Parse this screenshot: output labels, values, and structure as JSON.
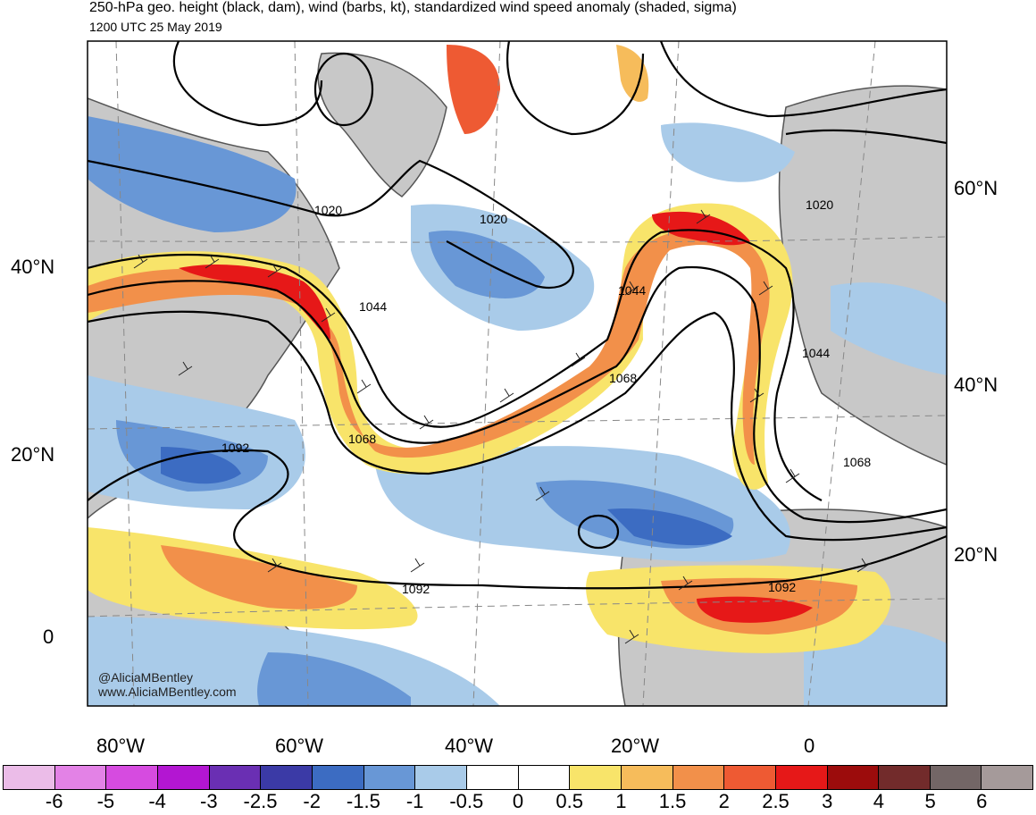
{
  "header": {
    "title": "250-hPa geo. height (black, dam), wind (barbs, kt), standardized wind speed anomaly (shaded, sigma)",
    "valid_time": "1200 UTC 25 May 2019"
  },
  "axes": {
    "left_lat_labels": [
      "40°N",
      "20°N",
      "0"
    ],
    "right_lat_labels": [
      "60°N",
      "40°N",
      "20°N"
    ],
    "bottom_lon_labels": [
      "80°W",
      "60°W",
      "40°W",
      "20°W",
      "0"
    ]
  },
  "contour_labels": [
    "1020",
    "1020",
    "1020",
    "1044",
    "1044",
    "1044",
    "1068",
    "1068",
    "1068",
    "1092",
    "1092",
    "1092"
  ],
  "credits": {
    "handle": "@AliciaMBentley",
    "website": "www.AliciaMBentley.com"
  },
  "colorbar": {
    "labels": [
      "-6",
      "-5",
      "-4",
      "-3",
      "-2.5",
      "-2",
      "-1.5",
      "-1",
      "-0.5",
      "0",
      "0.5",
      "1",
      "1.5",
      "2",
      "2.5",
      "3",
      "4",
      "5",
      "6"
    ],
    "colors": [
      "#ebbce8",
      "#e382e6",
      "#d64be0",
      "#b316d2",
      "#6a2fb3",
      "#3b3aa6",
      "#3c6cc2",
      "#6897d6",
      "#a9cbe9",
      "#ffffff",
      "#ffffff",
      "#f8e46a",
      "#f6bc5b",
      "#f2904a",
      "#ee5a33",
      "#e61818",
      "#9c0c0c",
      "#722b2b",
      "#736666",
      "#a59a9a"
    ]
  },
  "colors": {
    "land": "#c8c8c8",
    "coast": "#555555"
  }
}
